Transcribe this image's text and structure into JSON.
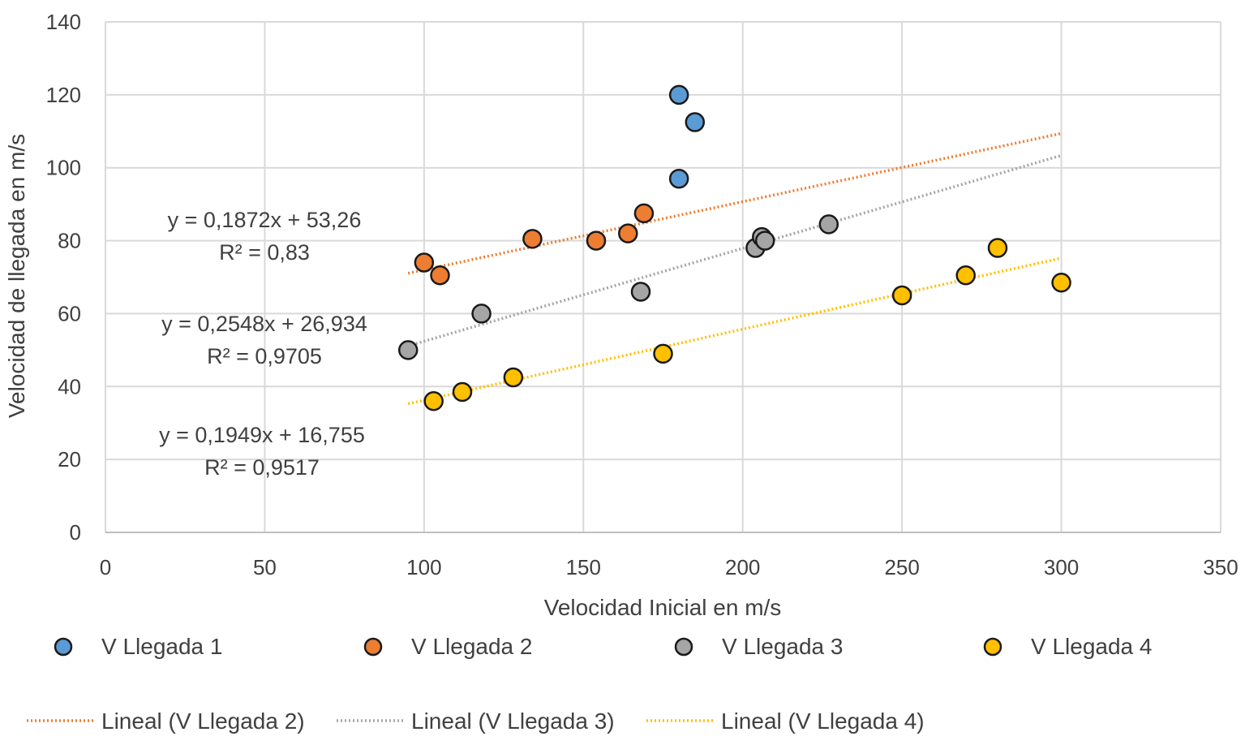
{
  "chart_data": {
    "type": "scatter",
    "xlabel": "Velocidad Inicial en m/s",
    "ylabel": "Velocidad de llegada en m/s",
    "xlim": [
      0,
      350
    ],
    "ylim": [
      0,
      140
    ],
    "xticks": [
      "0",
      "50",
      "100",
      "150",
      "200",
      "250",
      "300",
      "350"
    ],
    "yticks": [
      "0",
      "20",
      "40",
      "60",
      "80",
      "100",
      "120",
      "140"
    ],
    "grid": true,
    "legend_position": "bottom",
    "series": [
      {
        "name": "V Llegada 1",
        "color": "#5B9BD5",
        "points": [
          [
            180,
            120
          ],
          [
            185,
            112.5
          ],
          [
            180,
            97
          ]
        ]
      },
      {
        "name": "V Llegada 2",
        "color": "#ED7D31",
        "points": [
          [
            100,
            74
          ],
          [
            105,
            70.5
          ],
          [
            134,
            80.5
          ],
          [
            154,
            80
          ],
          [
            164,
            82
          ],
          [
            169,
            87.5
          ]
        ]
      },
      {
        "name": "V Llegada 3",
        "color": "#A5A5A5",
        "points": [
          [
            95,
            50
          ],
          [
            118,
            60
          ],
          [
            168,
            66
          ],
          [
            204,
            78
          ],
          [
            206,
            81
          ],
          [
            207,
            80
          ],
          [
            227,
            84.5
          ]
        ]
      },
      {
        "name": "V Llegada 4",
        "color": "#FFC000",
        "points": [
          [
            103,
            36
          ],
          [
            112,
            38.5
          ],
          [
            128,
            42.5
          ],
          [
            175,
            49
          ],
          [
            250,
            65
          ],
          [
            270,
            70.5
          ],
          [
            280,
            78
          ],
          [
            300,
            68.5
          ]
        ]
      }
    ],
    "trendlines": [
      {
        "name": "Lineal (V Llegada 2)",
        "color": "#ED7D31",
        "x_range": [
          95,
          300
        ],
        "slope": 0.1872,
        "intercept": 53.26,
        "equation": "y = 0,1872x + 53,26",
        "r2": "R² = 0,83"
      },
      {
        "name": "Lineal (V Llegada 3)",
        "color": "#A5A5A5",
        "x_range": [
          95,
          300
        ],
        "slope": 0.2548,
        "intercept": 26.934,
        "equation": "y = 0,2548x + 26,934",
        "r2": "R² = 0,9705"
      },
      {
        "name": "Lineal (V Llegada 4)",
        "color": "#FFC000",
        "x_range": [
          95,
          300
        ],
        "slope": 0.1949,
        "intercept": 16.755,
        "equation": "y = 0,1949x + 16,755",
        "r2": "R² = 0,9517"
      }
    ]
  }
}
